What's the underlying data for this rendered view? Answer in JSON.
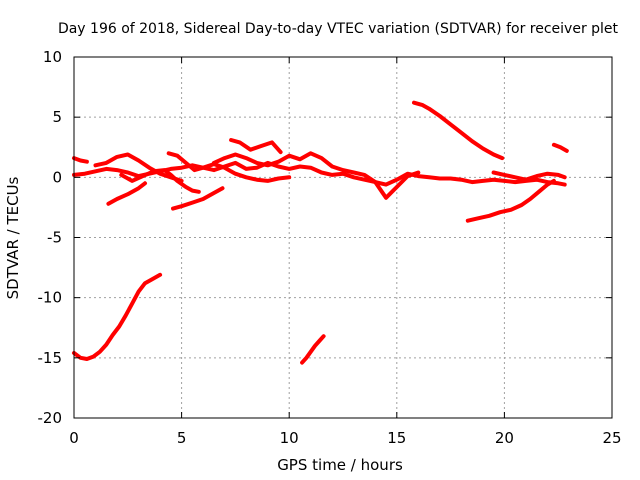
{
  "chart_data": {
    "type": "line",
    "title": "Day 196 of 2018, Sidereal Day-to-day VTEC variation (SDTVAR) for receiver plet",
    "xlabel": "GPS time / hours",
    "ylabel": "SDTVAR / TECUs",
    "xlim": [
      0,
      25
    ],
    "ylim": [
      -20,
      10
    ],
    "xticks": [
      0,
      5,
      10,
      15,
      20,
      25
    ],
    "yticks": [
      10,
      5,
      0,
      -5,
      -10,
      -15,
      -20
    ],
    "grid": true,
    "line_color": "#ff0000",
    "series": [
      {
        "name": "s1",
        "x": [
          0,
          0.3,
          0.6,
          0.9,
          1.2,
          1.5,
          1.8,
          2.1,
          2.4,
          2.7,
          3.0,
          3.3,
          3.6,
          4.0
        ],
        "y": [
          -14.6,
          -15.0,
          -15.1,
          -14.9,
          -14.5,
          -13.9,
          -13.1,
          -12.4,
          -11.5,
          -10.5,
          -9.5,
          -8.8,
          -8.5,
          -8.1
        ]
      },
      {
        "name": "s2",
        "x": [
          10.6,
          10.8,
          11.0,
          11.2,
          11.4,
          11.6
        ],
        "y": [
          -15.4,
          -15.0,
          -14.5,
          -14.0,
          -13.6,
          -13.2
        ]
      },
      {
        "name": "s3",
        "x": [
          0,
          0.3,
          0.6
        ],
        "y": [
          1.6,
          1.4,
          1.3
        ]
      },
      {
        "name": "s4",
        "x": [
          0,
          0.5,
          1.0,
          1.5,
          2.0,
          2.5,
          3.0,
          3.5,
          4.0,
          4.5,
          5.0,
          5.5,
          6.0,
          6.5,
          7.0,
          7.5,
          8.0,
          8.5,
          9.0,
          9.5,
          10.0,
          10.5,
          11.0,
          11.5,
          12.0,
          12.5,
          13.0,
          13.5,
          14.0,
          14.5,
          15.0,
          15.5,
          16.0,
          16.5,
          17.0,
          17.5,
          18.0,
          18.5,
          19.0,
          19.5,
          20.0,
          20.5,
          21.0,
          21.5,
          22.0,
          22.5,
          22.8
        ],
        "y": [
          0.2,
          0.3,
          0.5,
          0.7,
          0.6,
          0.4,
          0.1,
          0.3,
          0.5,
          0.7,
          0.8,
          1.0,
          0.8,
          0.6,
          0.9,
          1.2,
          0.7,
          0.8,
          1.2,
          0.9,
          0.7,
          0.9,
          0.8,
          0.4,
          0.2,
          0.3,
          0.0,
          -0.2,
          -0.4,
          -0.6,
          -0.2,
          0.3,
          0.1,
          0.0,
          -0.1,
          -0.1,
          -0.2,
          -0.4,
          -0.3,
          -0.2,
          -0.3,
          -0.4,
          -0.3,
          -0.2,
          -0.4,
          -0.5,
          -0.6
        ]
      },
      {
        "name": "s5",
        "x": [
          1.0,
          1.5,
          2.0,
          2.5,
          3.0,
          3.5,
          4.0,
          4.5,
          5.0
        ],
        "y": [
          1.0,
          1.2,
          1.7,
          1.9,
          1.4,
          0.8,
          0.3,
          0.0,
          -0.3
        ]
      },
      {
        "name": "s6",
        "x": [
          1.6,
          2.0,
          2.5,
          3.0,
          3.3
        ],
        "y": [
          -2.2,
          -1.8,
          -1.4,
          -0.9,
          -0.5
        ]
      },
      {
        "name": "s7",
        "x": [
          2.2,
          2.7,
          3.2,
          3.7,
          4.2,
          4.5,
          4.8,
          5.2,
          5.5,
          5.8
        ],
        "y": [
          0.2,
          -0.3,
          0.1,
          0.5,
          0.6,
          0.2,
          -0.3,
          -0.8,
          -1.1,
          -1.2
        ]
      },
      {
        "name": "s8",
        "x": [
          4.6,
          5.0,
          5.5,
          6.0,
          6.5,
          6.9
        ],
        "y": [
          -2.6,
          -2.4,
          -2.1,
          -1.8,
          -1.3,
          -0.9
        ]
      },
      {
        "name": "s9",
        "x": [
          4.4,
          4.8,
          5.2,
          5.6,
          6.0,
          6.5,
          7.0,
          7.5,
          8.0,
          8.5,
          9.0,
          9.5,
          10.0
        ],
        "y": [
          2.0,
          1.8,
          1.2,
          0.6,
          0.8,
          1.1,
          0.8,
          0.3,
          0.0,
          -0.2,
          -0.3,
          -0.1,
          0.0
        ]
      },
      {
        "name": "s10",
        "x": [
          7.3,
          7.7,
          8.2,
          8.7,
          9.2,
          9.6
        ],
        "y": [
          3.1,
          2.9,
          2.3,
          2.6,
          2.9,
          2.1
        ]
      },
      {
        "name": "s11",
        "x": [
          6.5,
          7.0,
          7.5,
          8.0,
          8.5,
          9.0,
          9.5,
          10.0,
          10.5,
          11.0,
          11.5,
          12.0,
          12.5,
          13.0,
          13.5,
          14.0,
          14.5,
          15.0,
          15.5,
          16.0
        ],
        "y": [
          1.2,
          1.6,
          1.9,
          1.6,
          1.2,
          1.0,
          1.3,
          1.8,
          1.5,
          2.0,
          1.6,
          0.9,
          0.6,
          0.4,
          0.2,
          -0.4,
          -1.7,
          -0.8,
          0.1,
          0.4
        ]
      },
      {
        "name": "s12",
        "x": [
          15.8,
          16.2,
          16.5,
          17.0,
          17.5,
          18.0,
          18.5,
          19.0,
          19.5,
          19.9
        ],
        "y": [
          6.2,
          6.0,
          5.7,
          5.1,
          4.4,
          3.7,
          3.0,
          2.4,
          1.9,
          1.6
        ]
      },
      {
        "name": "s13",
        "x": [
          18.3,
          18.8,
          19.3,
          19.8,
          20.3,
          20.8,
          21.2,
          21.6,
          22.0,
          22.3
        ],
        "y": [
          -3.6,
          -3.4,
          -3.2,
          -2.9,
          -2.7,
          -2.3,
          -1.8,
          -1.2,
          -0.6,
          -0.3
        ]
      },
      {
        "name": "s14",
        "x": [
          19.5,
          20.0,
          20.5,
          21.0,
          21.5,
          22.0,
          22.5,
          22.8
        ],
        "y": [
          0.4,
          0.2,
          0.0,
          -0.2,
          0.1,
          0.3,
          0.2,
          0.0
        ]
      },
      {
        "name": "s15",
        "x": [
          22.3,
          22.6,
          22.9
        ],
        "y": [
          2.7,
          2.5,
          2.2
        ]
      }
    ]
  }
}
